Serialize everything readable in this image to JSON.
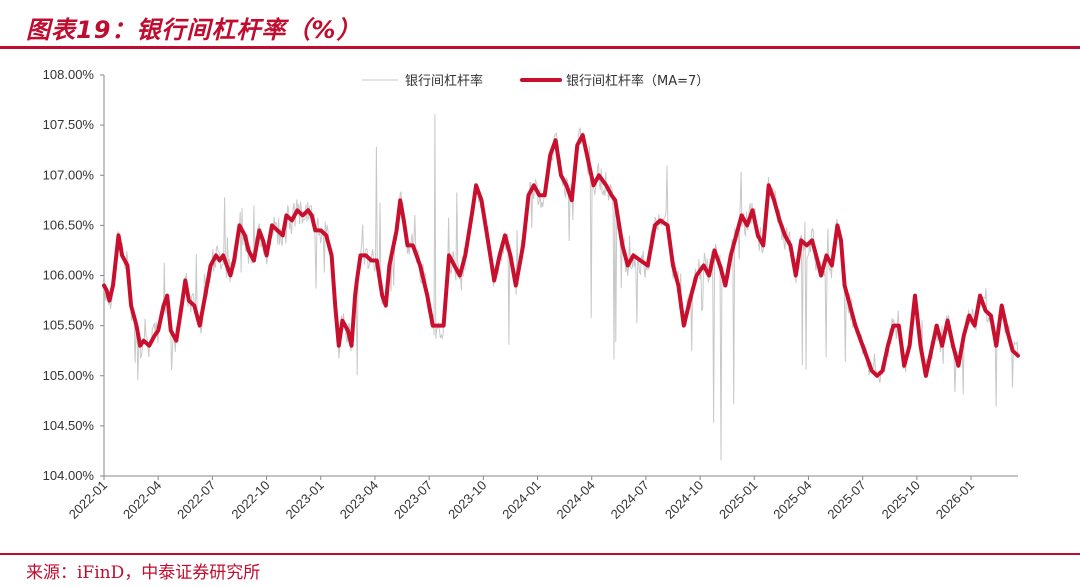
{
  "header": {
    "title": "图表19：银行间杠杆率（%）"
  },
  "footer": {
    "source": "来源：iFinD，中泰证券研究所"
  },
  "chart_data": {
    "type": "line",
    "title": "图表19：银行间杠杆率（%）",
    "xlabel": "",
    "ylabel": "",
    "ylim": [
      104.0,
      108.0
    ],
    "yticks": [
      "104.00%",
      "104.50%",
      "105.00%",
      "105.50%",
      "106.00%",
      "106.50%",
      "107.00%",
      "107.50%",
      "108.00%"
    ],
    "ytick_values": [
      104.0,
      104.5,
      105.0,
      105.5,
      106.0,
      106.5,
      107.0,
      107.5,
      108.0
    ],
    "xticks": [
      "2022-01",
      "2022-04",
      "2022-07",
      "2022-10",
      "2023-01",
      "2023-04",
      "2023-07",
      "2023-10",
      "2024-01",
      "2024-04",
      "2024-07",
      "2024-10",
      "2025-01",
      "2025-04",
      "2025-07",
      "2025-10",
      "2026-01"
    ],
    "x_end_month_index": 50.6,
    "legend": {
      "placement": "top-center"
    },
    "series": [
      {
        "name": "银行间杠杆率",
        "color": "#c8c8c8",
        "note": "daily values, noisy around the moving average",
        "anchors": [
          [
            0.0,
            105.95
          ],
          [
            0.5,
            105.6
          ],
          [
            1.0,
            106.55
          ],
          [
            1.5,
            105.9
          ],
          [
            1.8,
            104.85
          ],
          [
            2.3,
            105.6
          ],
          [
            2.8,
            105.2
          ],
          [
            3.4,
            106.0
          ],
          [
            3.8,
            104.9
          ],
          [
            4.4,
            106.2
          ],
          [
            4.8,
            105.8
          ],
          [
            5.4,
            106.6
          ],
          [
            6.0,
            106.3
          ],
          [
            6.6,
            106.9
          ],
          [
            7.0,
            106.3
          ],
          [
            7.5,
            106.7
          ],
          [
            8.0,
            106.6
          ],
          [
            8.6,
            106.8
          ],
          [
            9.2,
            106.2
          ],
          [
            9.6,
            105.5
          ],
          [
            10.0,
            104.7
          ],
          [
            10.5,
            105.9
          ],
          [
            11.0,
            106.3
          ],
          [
            11.6,
            105.8
          ],
          [
            12.2,
            106.1
          ],
          [
            12.6,
            106.8
          ],
          [
            13.2,
            105.9
          ],
          [
            13.6,
            105.3
          ],
          [
            14.0,
            104.95
          ],
          [
            14.4,
            106.3
          ],
          [
            15.0,
            107.5
          ],
          [
            15.4,
            106.4
          ],
          [
            15.8,
            105.6
          ],
          [
            16.2,
            106.1
          ],
          [
            16.8,
            106.5
          ],
          [
            17.4,
            107.2
          ],
          [
            17.8,
            106.9
          ],
          [
            18.2,
            107.55
          ],
          [
            18.6,
            107.75
          ],
          [
            19.0,
            107.05
          ],
          [
            19.6,
            106.8
          ],
          [
            20.2,
            106.3
          ],
          [
            20.6,
            106.8
          ],
          [
            21.0,
            106.2
          ],
          [
            21.5,
            106.7
          ],
          [
            22.0,
            106.0
          ],
          [
            22.3,
            104.95
          ],
          [
            22.8,
            106.5
          ],
          [
            23.4,
            106.1
          ],
          [
            24.0,
            106.9
          ],
          [
            24.6,
            106.7
          ],
          [
            25.0,
            106.1
          ],
          [
            25.4,
            106.7
          ],
          [
            25.8,
            106.3
          ],
          [
            26.4,
            106.1
          ],
          [
            27.0,
            105.55
          ],
          [
            27.6,
            105.2
          ],
          [
            28.2,
            105.1
          ],
          [
            28.6,
            105.8
          ],
          [
            29.2,
            105.0
          ],
          [
            29.6,
            105.7
          ],
          [
            30.0,
            104.95
          ],
          [
            30.4,
            105.7
          ],
          [
            30.8,
            105.3
          ],
          [
            31.0,
            106.75
          ],
          [
            31.4,
            105.8
          ],
          [
            31.8,
            106.35
          ],
          [
            32.2,
            105.3
          ],
          [
            32.6,
            106.4
          ],
          [
            33.0,
            105.6
          ],
          [
            33.4,
            105.8
          ],
          [
            33.8,
            104.35
          ],
          [
            34.1,
            104.1
          ],
          [
            34.5,
            104.5
          ],
          [
            34.8,
            104.7
          ],
          [
            35.2,
            104.8
          ],
          [
            35.6,
            105.2
          ],
          [
            36.0,
            104.85
          ],
          [
            36.4,
            105.15
          ],
          [
            36.8,
            105.3
          ],
          [
            37.2,
            105.0
          ],
          [
            37.6,
            105.6
          ],
          [
            38.0,
            105.9
          ],
          [
            38.4,
            105.3
          ],
          [
            38.8,
            105.0
          ],
          [
            39.2,
            105.4
          ],
          [
            39.6,
            104.95
          ],
          [
            40.0,
            105.2
          ],
          [
            40.4,
            105.5
          ],
          [
            40.8,
            104.9
          ],
          [
            41.2,
            105.3
          ],
          [
            41.6,
            105.1
          ],
          [
            42.0,
            105.4
          ],
          [
            42.4,
            104.75
          ],
          [
            42.8,
            105.3
          ],
          [
            43.2,
            105.1
          ],
          [
            43.6,
            105.0
          ],
          [
            44.0,
            105.7
          ],
          [
            44.4,
            105.4
          ],
          [
            44.8,
            105.8
          ],
          [
            45.2,
            105.5
          ],
          [
            45.6,
            105.75
          ],
          [
            46.0,
            105.2
          ],
          [
            46.4,
            105.5
          ],
          [
            46.8,
            105.2
          ],
          [
            47.2,
            105.3
          ]
        ]
      },
      {
        "name": "银行间杠杆率（MA=7）",
        "color": "#c8102e",
        "anchors": [
          [
            0.0,
            105.9
          ],
          [
            0.15,
            105.85
          ],
          [
            0.3,
            105.75
          ],
          [
            0.5,
            105.9
          ],
          [
            0.8,
            106.4
          ],
          [
            1.0,
            106.2
          ],
          [
            1.3,
            106.1
          ],
          [
            1.5,
            105.7
          ],
          [
            1.8,
            105.5
          ],
          [
            2.0,
            105.3
          ],
          [
            2.2,
            105.35
          ],
          [
            2.5,
            105.3
          ],
          [
            2.8,
            105.4
          ],
          [
            3.0,
            105.45
          ],
          [
            3.3,
            105.7
          ],
          [
            3.5,
            105.8
          ],
          [
            3.7,
            105.45
          ],
          [
            4.0,
            105.35
          ],
          [
            4.3,
            105.7
          ],
          [
            4.5,
            105.95
          ],
          [
            4.7,
            105.75
          ],
          [
            5.0,
            105.7
          ],
          [
            5.3,
            105.5
          ],
          [
            5.6,
            105.8
          ],
          [
            5.9,
            106.1
          ],
          [
            6.2,
            106.2
          ],
          [
            6.4,
            106.15
          ],
          [
            6.6,
            106.2
          ],
          [
            7.0,
            106.0
          ],
          [
            7.2,
            106.15
          ],
          [
            7.5,
            106.5
          ],
          [
            7.8,
            106.4
          ],
          [
            8.0,
            106.25
          ],
          [
            8.3,
            106.15
          ],
          [
            8.6,
            106.45
          ],
          [
            8.8,
            106.35
          ],
          [
            9.0,
            106.2
          ],
          [
            9.3,
            106.5
          ],
          [
            9.6,
            106.45
          ],
          [
            9.9,
            106.4
          ],
          [
            10.1,
            106.6
          ],
          [
            10.4,
            106.55
          ],
          [
            10.7,
            106.65
          ],
          [
            11.0,
            106.6
          ],
          [
            11.3,
            106.65
          ],
          [
            11.5,
            106.6
          ],
          [
            11.7,
            106.45
          ],
          [
            12.0,
            106.45
          ],
          [
            12.3,
            106.4
          ],
          [
            12.6,
            106.2
          ],
          [
            12.8,
            105.7
          ],
          [
            13.0,
            105.3
          ],
          [
            13.2,
            105.55
          ],
          [
            13.5,
            105.45
          ],
          [
            13.7,
            105.3
          ],
          [
            13.9,
            105.8
          ],
          [
            14.0,
            105.95
          ],
          [
            14.2,
            106.2
          ],
          [
            14.5,
            106.2
          ],
          [
            14.8,
            106.15
          ],
          [
            15.1,
            106.15
          ],
          [
            15.4,
            105.8
          ],
          [
            15.6,
            105.7
          ],
          [
            15.8,
            106.1
          ],
          [
            16.2,
            106.45
          ],
          [
            16.4,
            106.75
          ],
          [
            16.6,
            106.55
          ],
          [
            16.8,
            106.3
          ],
          [
            17.1,
            106.3
          ],
          [
            17.5,
            106.1
          ],
          [
            17.9,
            105.8
          ],
          [
            18.2,
            105.5
          ],
          [
            18.5,
            105.5
          ],
          [
            18.8,
            105.5
          ],
          [
            19.1,
            106.2
          ],
          [
            19.4,
            106.1
          ],
          [
            19.7,
            106.0
          ],
          [
            20.0,
            106.2
          ],
          [
            20.4,
            106.65
          ],
          [
            20.6,
            106.9
          ],
          [
            20.9,
            106.75
          ],
          [
            21.3,
            106.3
          ],
          [
            21.6,
            105.95
          ],
          [
            21.9,
            106.2
          ],
          [
            22.2,
            106.4
          ],
          [
            22.5,
            106.2
          ],
          [
            22.8,
            105.9
          ],
          [
            23.2,
            106.3
          ],
          [
            23.5,
            106.8
          ],
          [
            23.8,
            106.9
          ],
          [
            24.1,
            106.8
          ],
          [
            24.4,
            106.8
          ],
          [
            24.7,
            107.2
          ],
          [
            25.0,
            107.35
          ],
          [
            25.3,
            107.0
          ],
          [
            25.6,
            106.9
          ],
          [
            25.9,
            106.75
          ],
          [
            26.2,
            107.3
          ],
          [
            26.5,
            107.4
          ],
          [
            26.8,
            107.15
          ],
          [
            27.1,
            106.9
          ],
          [
            27.4,
            107.0
          ],
          [
            27.8,
            106.9
          ],
          [
            28.1,
            106.8
          ],
          [
            28.3,
            106.75
          ],
          [
            28.7,
            106.3
          ],
          [
            29.0,
            106.1
          ],
          [
            29.3,
            106.2
          ],
          [
            29.7,
            106.15
          ],
          [
            30.1,
            106.1
          ],
          [
            30.5,
            106.5
          ],
          [
            30.8,
            106.55
          ],
          [
            31.2,
            106.5
          ],
          [
            31.5,
            106.1
          ],
          [
            31.8,
            105.9
          ],
          [
            32.1,
            105.5
          ],
          [
            32.5,
            105.8
          ],
          [
            32.8,
            106.0
          ],
          [
            33.2,
            106.1
          ],
          [
            33.5,
            106.0
          ],
          [
            33.8,
            106.25
          ],
          [
            34.1,
            106.1
          ],
          [
            34.4,
            105.9
          ],
          [
            34.7,
            106.2
          ],
          [
            35.0,
            106.4
          ],
          [
            35.3,
            106.6
          ],
          [
            35.6,
            106.5
          ],
          [
            35.9,
            106.65
          ],
          [
            36.2,
            106.4
          ],
          [
            36.5,
            106.3
          ],
          [
            36.8,
            106.9
          ],
          [
            37.1,
            106.75
          ],
          [
            37.4,
            106.55
          ],
          [
            37.7,
            106.4
          ],
          [
            38.0,
            106.3
          ],
          [
            38.3,
            106.0
          ],
          [
            38.6,
            106.35
          ],
          [
            38.9,
            106.3
          ],
          [
            39.2,
            106.35
          ],
          [
            39.5,
            106.15
          ],
          [
            39.7,
            106.0
          ],
          [
            40.0,
            106.2
          ],
          [
            40.3,
            106.1
          ],
          [
            40.6,
            106.5
          ],
          [
            40.8,
            106.35
          ],
          [
            41.0,
            105.9
          ],
          [
            41.3,
            105.7
          ],
          [
            41.6,
            105.5
          ],
          [
            41.9,
            105.35
          ],
          [
            42.2,
            105.2
          ],
          [
            42.5,
            105.05
          ],
          [
            42.8,
            105.0
          ],
          [
            43.1,
            105.05
          ],
          [
            43.4,
            105.3
          ],
          [
            43.7,
            105.5
          ],
          [
            44.0,
            105.5
          ],
          [
            44.3,
            105.1
          ],
          [
            44.6,
            105.3
          ],
          [
            44.9,
            105.8
          ],
          [
            45.2,
            105.3
          ],
          [
            45.5,
            105.0
          ],
          [
            45.8,
            105.25
          ],
          [
            46.1,
            105.5
          ],
          [
            46.4,
            105.3
          ],
          [
            46.7,
            105.55
          ],
          [
            47.0,
            105.3
          ],
          [
            47.3,
            105.1
          ],
          [
            47.6,
            105.4
          ],
          [
            47.9,
            105.6
          ],
          [
            48.2,
            105.5
          ],
          [
            48.5,
            105.8
          ],
          [
            48.8,
            105.65
          ],
          [
            49.1,
            105.6
          ],
          [
            49.4,
            105.3
          ],
          [
            49.7,
            105.7
          ],
          [
            50.0,
            105.45
          ],
          [
            50.3,
            105.25
          ],
          [
            50.6,
            105.2
          ]
        ]
      }
    ]
  }
}
